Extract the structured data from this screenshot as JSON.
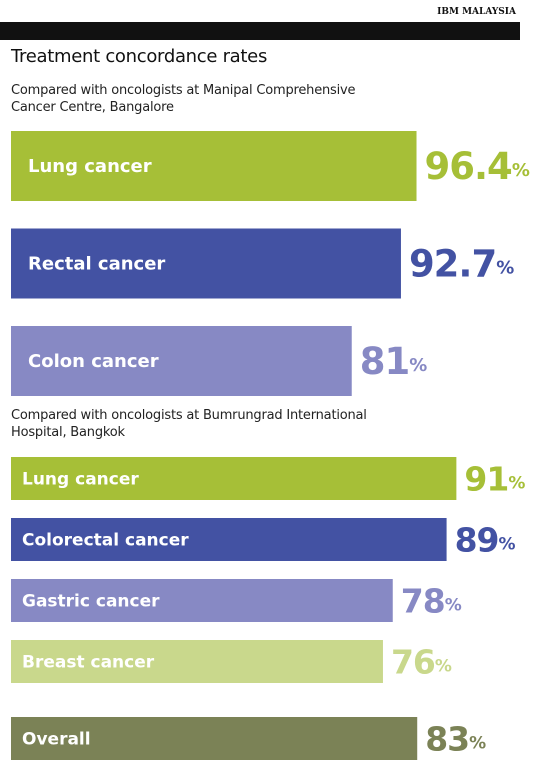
{
  "source": "IBM MALAYSIA",
  "title": "Treatment concordance rates",
  "chart_data": [
    {
      "type": "bar",
      "orientation": "horizontal",
      "subtitle": "Compared with oncologists at Manipal Comprehensive Cancer Centre, Bangalore",
      "categories": [
        "Lung cancer",
        "Rectal cancer",
        "Colon cancer"
      ],
      "values": [
        96.4,
        92.7,
        81
      ],
      "value_labels": [
        "96.4%",
        "92.7%",
        "81%"
      ],
      "colors": [
        "#a6bf37",
        "#4352a3",
        "#8789c4"
      ],
      "xlim": [
        0,
        121
      ]
    },
    {
      "type": "bar",
      "orientation": "horizontal",
      "subtitle": "Compared with oncologists at Bumrungrad International Hospital, Bangkok",
      "categories": [
        "Lung cancer",
        "Colorectal cancer",
        "Gastric cancer",
        "Breast cancer"
      ],
      "values": [
        91,
        89,
        78,
        76
      ],
      "value_labels": [
        "91%",
        "89%",
        "78%",
        "76%"
      ],
      "colors": [
        "#a6bf37",
        "#4352a3",
        "#8789c4",
        "#c9d88c"
      ],
      "xlim": [
        0,
        104
      ]
    },
    {
      "type": "bar",
      "orientation": "horizontal",
      "categories": [
        "Overall"
      ],
      "values": [
        83
      ],
      "value_labels": [
        "83%"
      ],
      "colors": [
        "#7b8256"
      ],
      "xlim": [
        0,
        104
      ]
    }
  ]
}
